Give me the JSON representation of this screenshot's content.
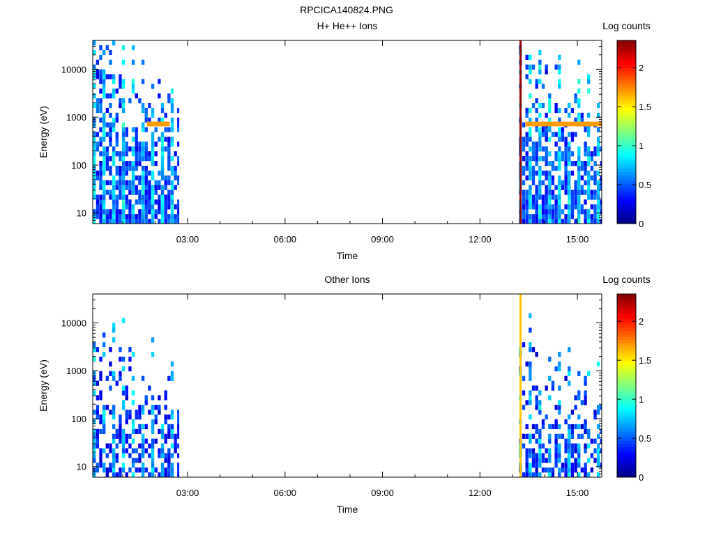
{
  "figure_title": "RPCICA140824.PNG",
  "chart_data": [
    {
      "type": "heatmap",
      "title": "H+ He++ Ions",
      "xlabel": "Time",
      "ylabel": "Energy (eV)",
      "x_ticks": [
        "03:00",
        "06:00",
        "09:00",
        "12:00",
        "15:00"
      ],
      "x_tick_hours": [
        3,
        6,
        9,
        12,
        15
      ],
      "xlim_hours": [
        0.08,
        15.75
      ],
      "y_scale": "log",
      "y_ticks": [
        "10",
        "100",
        "1000",
        "10000"
      ],
      "y_tick_values": [
        10,
        100,
        1000,
        10000
      ],
      "ylim": [
        6,
        40000
      ],
      "colorbar": {
        "label": "Log counts",
        "ticks": [
          "0",
          "0.5",
          "1",
          "1.5",
          "2"
        ],
        "tick_values": [
          0,
          0.5,
          1,
          1.5,
          2
        ],
        "range": [
          0,
          2.35
        ]
      },
      "data_intervals_hours": [
        [
          0.08,
          2.75
        ],
        [
          13.2,
          15.75
        ]
      ],
      "spike": {
        "time_hours": 13.25,
        "value": 2.3
      },
      "band": {
        "energy_ev": 720,
        "intervals_hours": [
          [
            1.75,
            2.45
          ],
          [
            13.4,
            15.75
          ]
        ],
        "value": 1.7
      },
      "seed": 7
    },
    {
      "type": "heatmap",
      "title": "Other Ions",
      "xlabel": "Time",
      "ylabel": "Energy (eV)",
      "x_ticks": [
        "03:00",
        "06:00",
        "09:00",
        "12:00",
        "15:00"
      ],
      "x_tick_hours": [
        3,
        6,
        9,
        12,
        15
      ],
      "xlim_hours": [
        0.08,
        15.75
      ],
      "y_scale": "log",
      "y_ticks": [
        "10",
        "100",
        "1000",
        "10000"
      ],
      "y_tick_values": [
        10,
        100,
        1000,
        10000
      ],
      "ylim": [
        6,
        40000
      ],
      "colorbar": {
        "label": "Log counts",
        "ticks": [
          "0",
          "0.5",
          "1",
          "1.5",
          "2"
        ],
        "tick_values": [
          0,
          0.5,
          1,
          1.5,
          2
        ],
        "range": [
          0,
          2.35
        ]
      },
      "data_intervals_hours": [
        [
          0.08,
          2.75
        ],
        [
          13.2,
          15.75
        ]
      ],
      "spike": {
        "time_hours": 13.25,
        "value": 1.6
      },
      "seed": 13
    }
  ]
}
